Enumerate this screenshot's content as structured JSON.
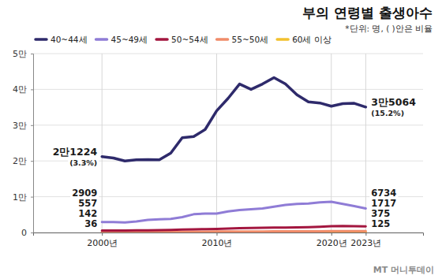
{
  "chart_data": {
    "type": "line",
    "title": "부의 연령별 출생아수",
    "subtitle": "*단위: 명, ( )안은 비율",
    "source": "MT 머니투데이",
    "x": [
      2000,
      2001,
      2002,
      2003,
      2004,
      2005,
      2006,
      2007,
      2008,
      2009,
      2010,
      2011,
      2012,
      2013,
      2014,
      2015,
      2016,
      2017,
      2018,
      2019,
      2020,
      2021,
      2022,
      2023
    ],
    "xlim": [
      1994,
      2028
    ],
    "xticks": [
      {
        "value": 2000,
        "label": "2000년"
      },
      {
        "value": 2010,
        "label": "2010년"
      },
      {
        "value": 2020,
        "label": "2020년"
      },
      {
        "value": 2023,
        "label": "2023년"
      }
    ],
    "ylim": [
      0,
      50000
    ],
    "yticks": [
      0,
      {
        "value": 10000,
        "label": "1만"
      },
      {
        "value": 20000,
        "label": "2만"
      },
      {
        "value": 30000,
        "label": "3만"
      },
      {
        "value": 40000,
        "label": "4만"
      },
      {
        "value": 50000,
        "label": "5만"
      }
    ],
    "grid": true,
    "legend": "top-left",
    "series": [
      {
        "name": "40~44세",
        "color": "#2e2a6b",
        "values": [
          21224,
          20800,
          20000,
          20300,
          20400,
          20300,
          22200,
          26500,
          26800,
          28800,
          34000,
          37500,
          41500,
          40000,
          41500,
          43300,
          41500,
          38500,
          36500,
          36200,
          35300,
          36000,
          36100,
          35064
        ],
        "value_labels": [
          "2만1224",
          null,
          null,
          null,
          null,
          null,
          null,
          null,
          null,
          null,
          null,
          null,
          null,
          null,
          null,
          null,
          null,
          null,
          null,
          null,
          null,
          null,
          null,
          "3만5064"
        ],
        "share_labels": [
          "(3.3%)",
          null,
          null,
          null,
          null,
          null,
          null,
          null,
          null,
          null,
          null,
          null,
          null,
          null,
          null,
          null,
          null,
          null,
          null,
          null,
          null,
          null,
          null,
          "(15.2%)"
        ]
      },
      {
        "name": "45~49세",
        "color": "#8f7cd6",
        "values": [
          2909,
          2900,
          2800,
          3100,
          3500,
          3700,
          3800,
          4300,
          5100,
          5300,
          5300,
          5900,
          6300,
          6500,
          6700,
          7200,
          7700,
          8000,
          8100,
          8400,
          8600,
          8000,
          7400,
          6734
        ],
        "value_labels": [
          "2909",
          null,
          null,
          null,
          null,
          null,
          null,
          null,
          null,
          null,
          null,
          null,
          null,
          null,
          null,
          null,
          null,
          null,
          null,
          null,
          null,
          null,
          null,
          "6734"
        ]
      },
      {
        "name": "50~54세",
        "color": "#a3163f",
        "values": [
          557,
          560,
          560,
          600,
          620,
          650,
          700,
          800,
          900,
          950,
          1000,
          1100,
          1200,
          1250,
          1300,
          1350,
          1400,
          1450,
          1500,
          1600,
          1750,
          1800,
          1750,
          1717
        ],
        "value_labels": [
          "557",
          null,
          null,
          null,
          null,
          null,
          null,
          null,
          null,
          null,
          null,
          null,
          null,
          null,
          null,
          null,
          null,
          null,
          null,
          null,
          null,
          null,
          null,
          "1717"
        ]
      },
      {
        "name": "55~50세",
        "color": "#f08c6a",
        "values": [
          142,
          140,
          140,
          150,
          160,
          170,
          180,
          190,
          210,
          230,
          250,
          270,
          280,
          290,
          300,
          310,
          320,
          330,
          340,
          350,
          370,
          380,
          380,
          375
        ],
        "value_labels": [
          "142",
          null,
          null,
          null,
          null,
          null,
          null,
          null,
          null,
          null,
          null,
          null,
          null,
          null,
          null,
          null,
          null,
          null,
          null,
          null,
          null,
          null,
          null,
          "375"
        ]
      },
      {
        "name": "60세 이상",
        "color": "#f2c12e",
        "values": [
          36,
          35,
          35,
          40,
          45,
          50,
          55,
          60,
          65,
          70,
          75,
          80,
          85,
          90,
          95,
          100,
          100,
          105,
          110,
          115,
          120,
          125,
          125,
          125
        ],
        "value_labels": [
          "36",
          null,
          null,
          null,
          null,
          null,
          null,
          null,
          null,
          null,
          null,
          null,
          null,
          null,
          null,
          null,
          null,
          null,
          null,
          null,
          null,
          null,
          null,
          "125"
        ]
      }
    ]
  }
}
